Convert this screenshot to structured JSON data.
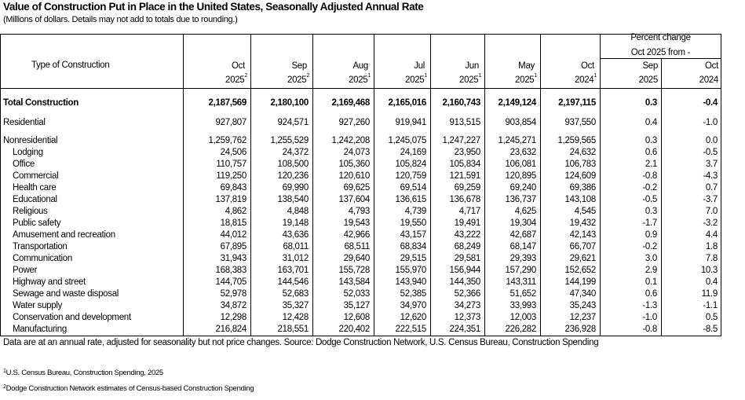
{
  "title": "Value of Construction Put in Place in the United States, Seasonally Adjusted Annual Rate",
  "subtitle": "(Millions of dollars. Details may not add to totals due to rounding.)",
  "header": {
    "type_label": "Type of Construction",
    "percent_group": [
      "Percent change",
      "Oct 2025 from -"
    ],
    "columns": [
      {
        "month": "Oct",
        "year": "2025",
        "note": "2"
      },
      {
        "month": "Sep",
        "year": "2025",
        "note": "2"
      },
      {
        "month": "Aug",
        "year": "2025",
        "note": "1"
      },
      {
        "month": "Jul",
        "year": "2025",
        "note": "1"
      },
      {
        "month": "Jun",
        "year": "2025",
        "note": "1"
      },
      {
        "month": "May",
        "year": "2025",
        "note": "1"
      },
      {
        "month": "Oct",
        "year": "2024",
        "note": "1"
      },
      {
        "month": "Sep",
        "year": "2025",
        "note": ""
      },
      {
        "month": "Oct",
        "year": "2024",
        "note": ""
      }
    ]
  },
  "rows": [
    {
      "label": "Total Construction",
      "bold": true,
      "values": [
        "2,187,569",
        "2,180,100",
        "2,169,468",
        "2,165,016",
        "2,160,743",
        "2,149,124",
        "2,197,115",
        "0.3",
        "-0.4"
      ]
    },
    {
      "label": "Residential",
      "values": [
        "927,807",
        "924,571",
        "927,260",
        "919,941",
        "913,515",
        "903,854",
        "937,550",
        "0.4",
        "-1.0"
      ]
    },
    {
      "label": "Nonresidential",
      "values": [
        "1,259,762",
        "1,255,529",
        "1,242,208",
        "1,245,075",
        "1,247,227",
        "1,245,271",
        "1,259,565",
        "0.3",
        "0.0"
      ]
    },
    {
      "label": "Lodging",
      "indent": true,
      "values": [
        "24,506",
        "24,372",
        "24,073",
        "24,169",
        "23,950",
        "23,632",
        "24,632",
        "0.6",
        "-0.5"
      ]
    },
    {
      "label": "Office",
      "indent": true,
      "values": [
        "110,757",
        "108,500",
        "105,360",
        "105,824",
        "105,834",
        "106,081",
        "106,783",
        "2.1",
        "3.7"
      ]
    },
    {
      "label": "Commercial",
      "indent": true,
      "values": [
        "119,250",
        "120,236",
        "120,610",
        "120,759",
        "121,591",
        "120,895",
        "124,609",
        "-0.8",
        "-4.3"
      ]
    },
    {
      "label": "Health care",
      "indent": true,
      "values": [
        "69,843",
        "69,990",
        "69,625",
        "69,514",
        "69,259",
        "69,240",
        "69,386",
        "-0.2",
        "0.7"
      ]
    },
    {
      "label": "Educational",
      "indent": true,
      "values": [
        "137,819",
        "138,540",
        "137,604",
        "136,615",
        "136,678",
        "136,737",
        "143,108",
        "-0.5",
        "-3.7"
      ]
    },
    {
      "label": "Religious",
      "indent": true,
      "values": [
        "4,862",
        "4,848",
        "4,793",
        "4,739",
        "4,717",
        "4,625",
        "4,545",
        "0.3",
        "7.0"
      ]
    },
    {
      "label": "Public safety",
      "indent": true,
      "values": [
        "18,815",
        "19,148",
        "19,543",
        "19,550",
        "19,491",
        "19,304",
        "19,432",
        "-1.7",
        "-3.2"
      ]
    },
    {
      "label": "Amusement and recreation",
      "indent": true,
      "values": [
        "44,012",
        "43,636",
        "42,966",
        "43,157",
        "43,222",
        "42,687",
        "42,143",
        "0.9",
        "4.4"
      ]
    },
    {
      "label": "Transportation",
      "indent": true,
      "values": [
        "67,895",
        "68,011",
        "68,511",
        "68,834",
        "68,249",
        "68,147",
        "66,707",
        "-0.2",
        "1.8"
      ]
    },
    {
      "label": "Communication",
      "indent": true,
      "values": [
        "31,943",
        "31,012",
        "29,640",
        "29,515",
        "29,581",
        "29,393",
        "29,621",
        "3.0",
        "7.8"
      ]
    },
    {
      "label": "Power",
      "indent": true,
      "values": [
        "168,383",
        "163,701",
        "155,728",
        "155,970",
        "156,944",
        "157,290",
        "152,652",
        "2.9",
        "10.3"
      ]
    },
    {
      "label": "Highway and street",
      "indent": true,
      "values": [
        "144,705",
        "144,546",
        "143,584",
        "143,940",
        "144,350",
        "143,311",
        "144,199",
        "0.1",
        "0.4"
      ]
    },
    {
      "label": "Sewage and waste disposal",
      "indent": true,
      "values": [
        "52,978",
        "52,683",
        "52,033",
        "52,385",
        "52,366",
        "51,652",
        "47,340",
        "0.6",
        "11.9"
      ]
    },
    {
      "label": "Water supply",
      "indent": true,
      "values": [
        "34,872",
        "35,327",
        "35,127",
        "34,970",
        "34,273",
        "33,993",
        "35,243",
        "-1.3",
        "-1.1"
      ]
    },
    {
      "label": "Conservation and development",
      "indent": true,
      "values": [
        "12,298",
        "12,428",
        "12,608",
        "12,620",
        "12,373",
        "12,003",
        "12,237",
        "-1.0",
        "0.5"
      ]
    },
    {
      "label": "Manufacturing",
      "indent": true,
      "values": [
        "216,824",
        "218,551",
        "220,402",
        "222,515",
        "224,351",
        "226,282",
        "236,928",
        "-0.8",
        "-8.5"
      ]
    }
  ],
  "note": "Data are at an annual rate, adjusted for seasonality but not price changes. Source: Dodge Construction Network, U.S. Census Bureau, Construction Spending",
  "footnotes": [
    {
      "mark": "1",
      "text": "U.S. Census Bureau, Construction Spending, 2025"
    },
    {
      "mark": "2",
      "text": "Dodge Construction Network estimates of Census-based Construction Spending"
    }
  ]
}
